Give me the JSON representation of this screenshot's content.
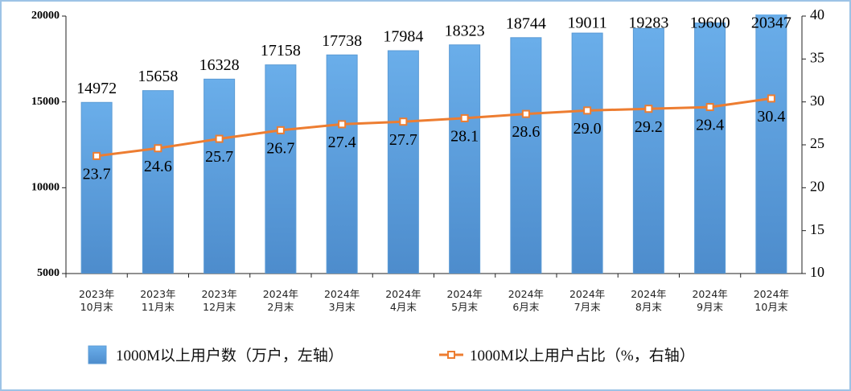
{
  "chart_data": {
    "type": "bar-line",
    "categories": [
      "2023年\n10月末",
      "2023年\n11月末",
      "2023年\n12月末",
      "2024年\n2月末",
      "2024年\n3月末",
      "2024年\n4月末",
      "2024年\n5月末",
      "2024年\n6月末",
      "2024年\n7月末",
      "2024年\n8月末",
      "2024年\n9月末",
      "2024年\n10月末"
    ],
    "series": [
      {
        "name": "1000M以上用户数（万户，左轴）",
        "type": "bar",
        "color": "#5b9bd5",
        "axis": "y",
        "values": [
          14972,
          15658,
          16328,
          17158,
          17738,
          17984,
          18323,
          18744,
          19011,
          19283,
          19600,
          20347
        ]
      },
      {
        "name": "1000M以上用户占比（%，右轴）",
        "type": "line",
        "color": "#ed7d31",
        "axis": "y2",
        "values": [
          23.7,
          24.6,
          25.7,
          26.7,
          27.4,
          27.7,
          28.1,
          28.6,
          29.0,
          29.2,
          29.4,
          30.4
        ],
        "value_labels": [
          "23.7",
          "24.6",
          "25.7",
          "26.7",
          "27.4",
          "27.7",
          "28.1",
          "28.6",
          "29.0",
          "29.2",
          "29.4",
          "30.4"
        ]
      }
    ],
    "ylim": [
      5000,
      20000
    ],
    "yticks": [
      5000,
      10000,
      15000,
      20000
    ],
    "y2lim": [
      10,
      40
    ],
    "y2ticks": [
      10,
      15,
      20,
      25,
      30,
      35,
      40
    ]
  }
}
